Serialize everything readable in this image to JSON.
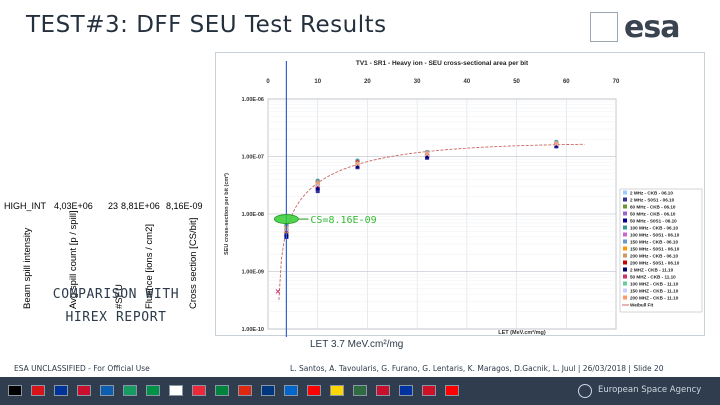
{
  "slide": {
    "title": "TEST#3: DFF SEU Test Results",
    "logo_text": "esa",
    "comparison_line1": "COMPARISON WITH",
    "comparison_line2": "HIREX REPORT",
    "let_note": "LET 3.7 MeV.cm²/mg"
  },
  "table": {
    "headers": [
      "Beam spill intensity",
      "Avg spill count [p / spill]",
      "#SEU",
      "Fluence [ions / cm2]",
      "Cross section [CS/bit]"
    ],
    "row": [
      "HIGH_INT",
      "4,03E+06",
      "23",
      "8,81E+06",
      "8,16E-09"
    ]
  },
  "chart_data": {
    "type": "scatter",
    "title": "TV1 - SR1 - Heavy ion - SEU cross-sectional area per bit",
    "xlabel": "LET (MeV.cm²/mg)",
    "ylabel": "SEU cross-section per bit (cm²)",
    "x_scale": "linear",
    "y_scale": "log",
    "xlim": [
      0,
      70
    ],
    "ylim": [
      1e-10,
      1e-06
    ],
    "x_ticks": [
      "0",
      "10",
      "20",
      "30",
      "40",
      "50",
      "60",
      "70"
    ],
    "y_ticks": [
      "1.00E-06",
      "1.00E-07",
      "1.00E-08",
      "1.00E-09",
      "1.00E-10"
    ],
    "annotation": "CS=8.16E-09",
    "series": [
      {
        "name": "2 MHz - CKB - 06.10",
        "color": "#99ccff",
        "points": [
          [
            3.7,
            5e-09
          ],
          [
            10,
            3e-08
          ],
          [
            18,
            7e-08
          ],
          [
            32,
            1e-07
          ],
          [
            58,
            1.6e-07
          ]
        ]
      },
      {
        "name": "2 MHz - S0S1 - 06.10",
        "color": "#333399",
        "points": [
          [
            3.7,
            4.5e-09
          ],
          [
            10,
            2.5e-08
          ],
          [
            18,
            6.5e-08
          ],
          [
            32,
            9.5e-08
          ],
          [
            58,
            1.5e-07
          ]
        ]
      },
      {
        "name": "60 MHz - CKB - 06.10",
        "color": "#669933",
        "points": [
          [
            3.7,
            5.5e-09
          ],
          [
            10,
            3.2e-08
          ],
          [
            18,
            7.5e-08
          ],
          [
            32,
            1.1e-07
          ],
          [
            58,
            1.7e-07
          ]
        ]
      },
      {
        "name": "50 MHz - CKB - 06.10",
        "color": "#9966cc",
        "points": [
          [
            3.7,
            6e-09
          ],
          [
            10,
            3.5e-08
          ],
          [
            18,
            8e-08
          ],
          [
            32,
            1.15e-07
          ],
          [
            58,
            1.75e-07
          ]
        ]
      },
      {
        "name": "50 MHz - S0S1 - 06.10",
        "color": "#000099",
        "points": [
          [
            3.7,
            4e-09
          ],
          [
            10,
            2.8e-08
          ],
          [
            18,
            6.8e-08
          ],
          [
            32,
            1e-07
          ],
          [
            58,
            1.55e-07
          ]
        ]
      },
      {
        "name": "100 MHz - CKB - 06.10",
        "color": "#339999",
        "points": [
          [
            3.7,
            6.5e-09
          ],
          [
            10,
            3.8e-08
          ],
          [
            18,
            8.5e-08
          ],
          [
            32,
            1.2e-07
          ],
          [
            58,
            1.8e-07
          ]
        ]
      },
      {
        "name": "100 MHz - S0S1 - 06.10",
        "color": "#cc66cc",
        "points": [
          [
            3.7,
            5e-09
          ],
          [
            10,
            3.3e-08
          ],
          [
            18,
            7.8e-08
          ],
          [
            32,
            1.12e-07
          ],
          [
            58,
            1.65e-07
          ]
        ]
      },
      {
        "name": "150 MHz - CKB - 06.10",
        "color": "#6699cc",
        "points": [
          [
            3.7,
            5.8e-09
          ],
          [
            10,
            3.6e-08
          ],
          [
            18,
            8.2e-08
          ],
          [
            32,
            1.18e-07
          ],
          [
            58,
            1.72e-07
          ]
        ]
      },
      {
        "name": "150 MHz - S0S1 - 06.10",
        "color": "#ff9900",
        "points": [
          [
            3.7,
            4.8e-09
          ],
          [
            10,
            3e-08
          ],
          [
            18,
            7e-08
          ],
          [
            32,
            1.05e-07
          ],
          [
            58,
            1.6e-07
          ]
        ]
      },
      {
        "name": "200 MHz - CKB - 06.10",
        "color": "#cc9966",
        "points": [
          [
            3.7,
            6.2e-09
          ],
          [
            10,
            3.7e-08
          ],
          [
            18,
            8.3e-08
          ],
          [
            32,
            1.2e-07
          ],
          [
            58,
            1.78e-07
          ]
        ]
      },
      {
        "name": "200 MHz - S0S1 - 06.10",
        "color": "#cc0000",
        "points": [
          [
            3.7,
            5.2e-09
          ],
          [
            10,
            3.4e-08
          ],
          [
            18,
            7.9e-08
          ],
          [
            32,
            1.1e-07
          ],
          [
            58,
            1.68e-07
          ]
        ]
      },
      {
        "name": "2 MHZ - CKB - 11.10",
        "color": "#000066",
        "points": [
          [
            3.7,
            4.2e-09
          ],
          [
            10,
            2.9e-08
          ],
          [
            18,
            6.9e-08
          ],
          [
            32,
            1.02e-07
          ],
          [
            58,
            1.58e-07
          ]
        ]
      },
      {
        "name": "50 MHZ - CKB - 11.10",
        "color": "#cc3366",
        "points": [
          [
            2,
            4.5e-10
          ],
          [
            10,
            3.1e-08
          ],
          [
            18,
            7.3e-08
          ],
          [
            32,
            1.08e-07
          ],
          [
            58,
            1.62e-07
          ]
        ]
      },
      {
        "name": "100 MHZ - CKB - 11.10",
        "color": "#66cc99",
        "points": [
          [
            3.7,
            5.6e-09
          ],
          [
            10,
            3.4e-08
          ],
          [
            18,
            7.6e-08
          ],
          [
            32,
            1.14e-07
          ],
          [
            58,
            1.7e-07
          ]
        ]
      },
      {
        "name": "150 MHZ - CKB - 11.10",
        "color": "#ccccff",
        "points": [
          [
            3.7,
            5.4e-09
          ],
          [
            10,
            3.2e-08
          ],
          [
            18,
            7.4e-08
          ],
          [
            32,
            1.1e-07
          ],
          [
            58,
            1.66e-07
          ]
        ]
      },
      {
        "name": "200 MHZ - CKB - 11.10",
        "color": "#ff9966",
        "points": [
          [
            3.7,
            5.9e-09
          ],
          [
            10,
            3.5e-08
          ],
          [
            18,
            7.7e-08
          ],
          [
            32,
            1.16e-07
          ],
          [
            58,
            1.74e-07
          ]
        ]
      }
    ],
    "fit": {
      "name": "Weibull Fit",
      "color": "#cc6666"
    },
    "measured_point": {
      "x": 3.7,
      "y": 8.16e-09,
      "color": "#33cc33"
    },
    "marker_line_color": "#3366cc"
  },
  "footer": {
    "left": "ESA UNCLASSIFIED - For Official Use",
    "right": "L. Santos, A. Tavoularis, G. Furano, G. Lentaris, K. Maragos, D.Gacnik, L. Juul | 26/03/2018 | Slide  20",
    "agency": "European Space Agency"
  },
  "flags": [
    "#000000",
    "#d7141a",
    "#003399",
    "#c8102e",
    "#0d5eaf",
    "#169b62",
    "#009246",
    "#ffffff",
    "#ed2939",
    "#00843d",
    "#de2910",
    "#003580",
    "#0066cc",
    "#ff0000",
    "#ffd700",
    "#2f6b3f",
    "#c8102e",
    "#0033a0",
    "#ce1126",
    "#ff0000"
  ]
}
